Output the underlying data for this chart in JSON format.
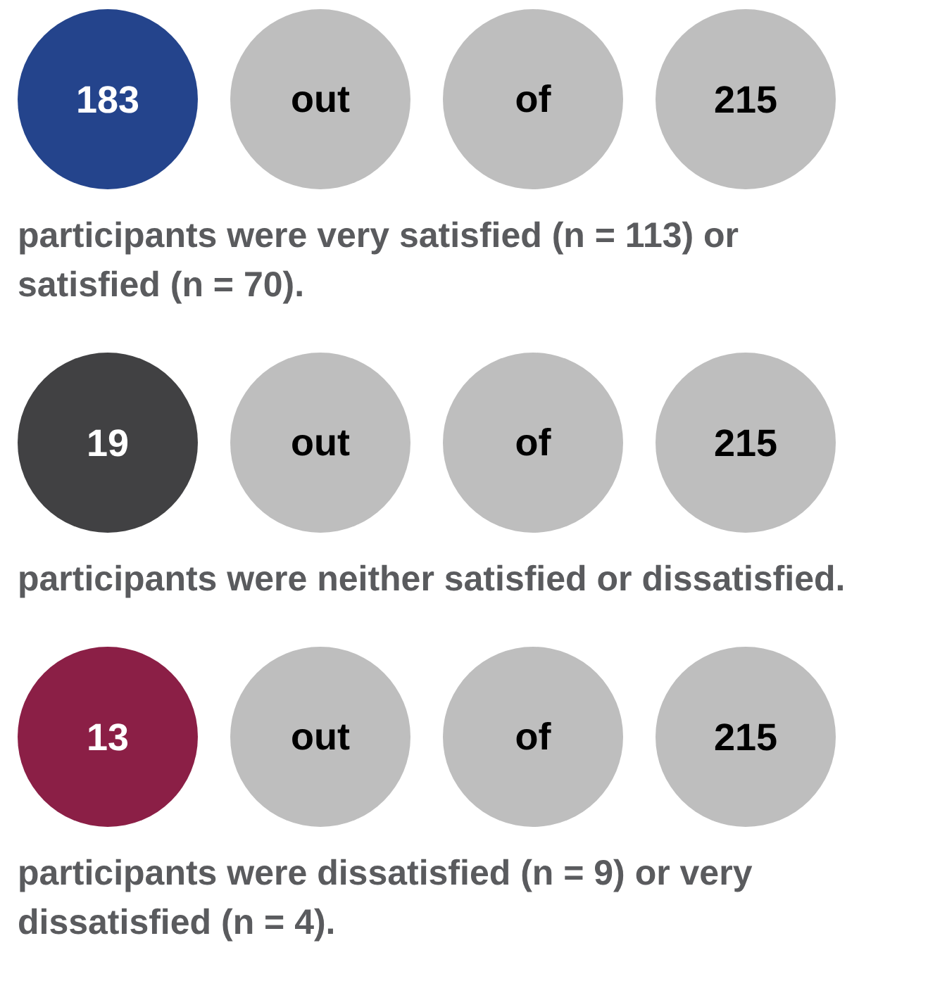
{
  "chart_data": [
    {
      "type": "other",
      "categories": [
        null,
        "out",
        "of",
        null
      ],
      "values": [
        183,
        null,
        null,
        215
      ],
      "colors": [
        "#24448c",
        "#bebebe",
        "#bebebe",
        "#bebebe"
      ],
      "data_labels": true,
      "annotations": [
        "participants were very satisfied (n = 113) or satisfied (n = 70)."
      ]
    },
    {
      "type": "other",
      "categories": [
        null,
        "out",
        "of",
        null
      ],
      "values": [
        19,
        null,
        null,
        215
      ],
      "colors": [
        "#414143",
        "#bebebe",
        "#bebebe",
        "#bebebe"
      ],
      "data_labels": true,
      "annotations": [
        "participants were neither satisfied or dissatisfied."
      ]
    },
    {
      "type": "other",
      "categories": [
        null,
        "out",
        "of",
        null
      ],
      "values": [
        13,
        null,
        null,
        215
      ],
      "colors": [
        "#8b1f46",
        "#bebebe",
        "#bebebe",
        "#bebebe"
      ],
      "data_labels": true,
      "annotations": [
        "participants were dissatisfied (n = 9) or very dissatisfied (n = 4)."
      ]
    }
  ]
}
